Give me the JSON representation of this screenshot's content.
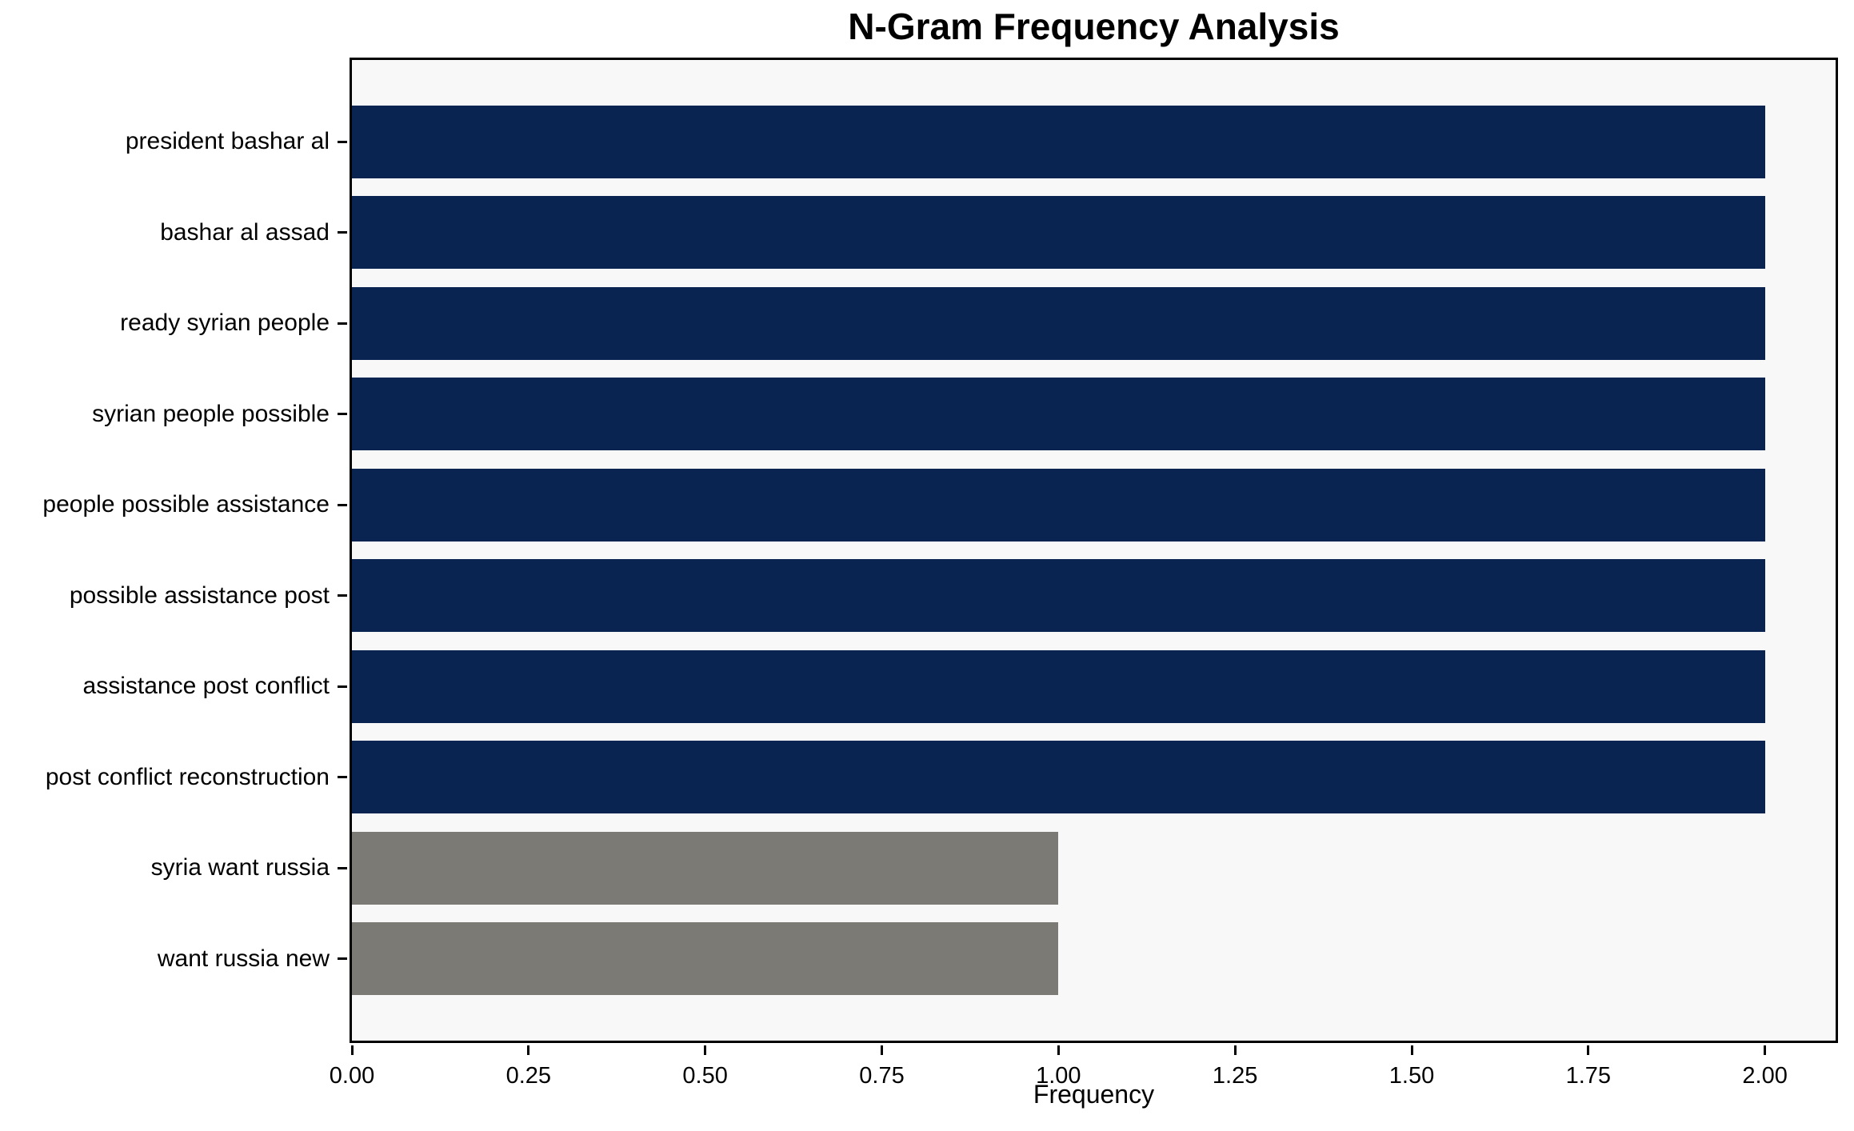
{
  "chart_data": {
    "type": "bar",
    "orientation": "horizontal",
    "title": "N-Gram Frequency Analysis",
    "xlabel": "Frequency",
    "ylabel": "",
    "categories": [
      "president bashar al",
      "bashar al assad",
      "ready syrian people",
      "syrian people possible",
      "people possible assistance",
      "possible assistance post",
      "assistance post conflict",
      "post conflict reconstruction",
      "syria want russia",
      "want russia new"
    ],
    "values": [
      2,
      2,
      2,
      2,
      2,
      2,
      2,
      2,
      1,
      1
    ],
    "bar_colors": [
      "#0a2451",
      "#0a2451",
      "#0a2451",
      "#0a2451",
      "#0a2451",
      "#0a2451",
      "#0a2451",
      "#0a2451",
      "#7b7a75",
      "#7b7a75"
    ],
    "xlim": [
      0,
      2.1
    ],
    "xtick_values": [
      0,
      0.25,
      0.5,
      0.75,
      1.0,
      1.25,
      1.5,
      1.75,
      2.0
    ],
    "xtick_labels": [
      "0.00",
      "0.25",
      "0.50",
      "0.75",
      "1.00",
      "1.25",
      "1.50",
      "1.75",
      "2.00"
    ],
    "grid": false,
    "legend": "none",
    "bar_height_fraction": 0.8,
    "y_margin_units": 0.9,
    "plot_background": "#f8f8f8",
    "figure_background": "#ffffff",
    "colors": {
      "high_frequency_bar": "#0a2451",
      "low_frequency_bar": "#7b7a75",
      "spine": "#000000",
      "text": "#000000"
    }
  }
}
